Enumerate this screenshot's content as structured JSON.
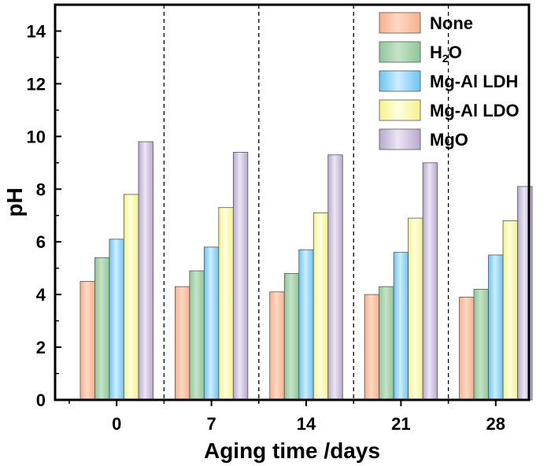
{
  "chart_data": {
    "type": "bar",
    "xlabel": "Aging time /days",
    "ylabel": "pH",
    "categories": [
      "0",
      "7",
      "14",
      "21",
      "28"
    ],
    "ylim": [
      0,
      15
    ],
    "yticks": [
      "0",
      "2",
      "4",
      "6",
      "8",
      "10",
      "12",
      "14"
    ],
    "grid": false,
    "legend_position": "top-right",
    "group_separators": "dashed vertical lines between groups",
    "series": [
      {
        "name": "None",
        "color_top": "#ffd9c4",
        "color": "#f6b08c",
        "values": [
          4.5,
          4.3,
          4.1,
          4.0,
          3.9
        ]
      },
      {
        "name": "H₂O",
        "name_main": "H",
        "name_sub": "2",
        "name_tail": "O",
        "color_top": "#c6e3c6",
        "color": "#8ec79a",
        "values": [
          5.4,
          4.9,
          4.8,
          4.3,
          4.2
        ]
      },
      {
        "name": "Mg-Al LDH",
        "color_top": "#cdeeff",
        "color": "#6ec3f2",
        "values": [
          6.1,
          5.8,
          5.7,
          5.6,
          5.5
        ]
      },
      {
        "name": "Mg-Al LDO",
        "color_top": "#ffffe0",
        "color": "#f4f28a",
        "values": [
          7.8,
          7.3,
          7.1,
          6.9,
          6.8
        ]
      },
      {
        "name": "MgO",
        "color_top": "#ece6f5",
        "color": "#b7a8cf",
        "values": [
          9.8,
          9.4,
          9.3,
          9.0,
          8.1
        ]
      }
    ]
  }
}
